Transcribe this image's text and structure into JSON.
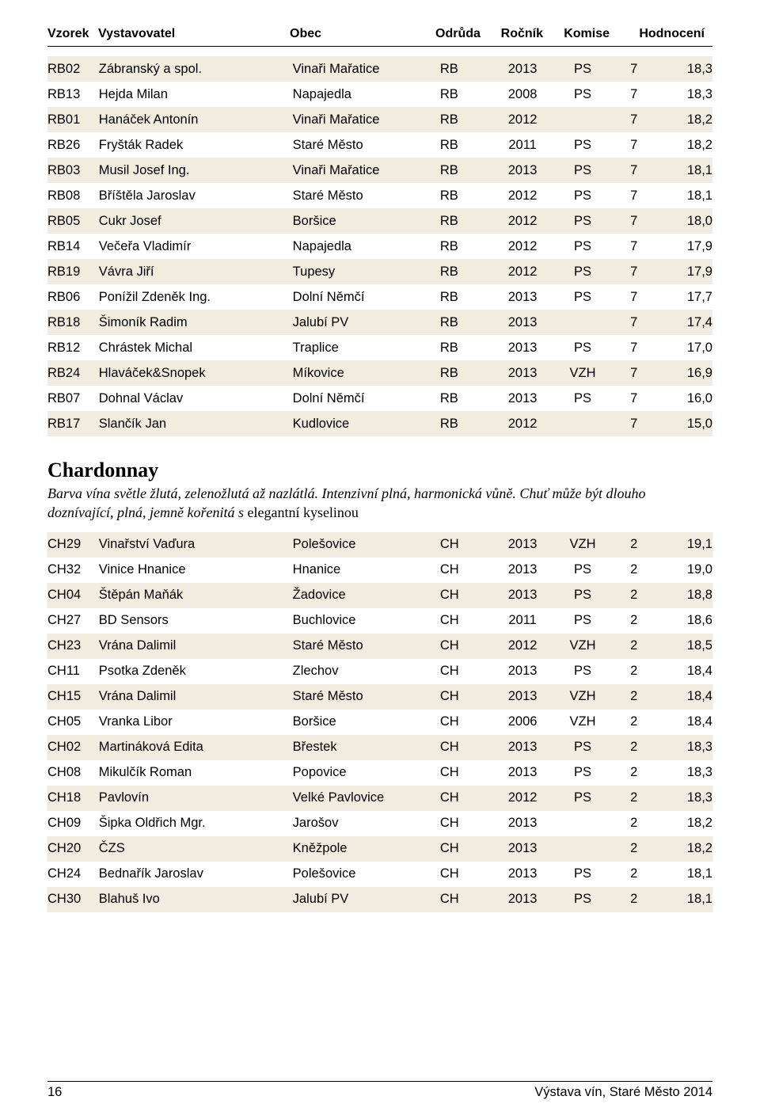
{
  "header": {
    "cols": {
      "vzorek": "Vzorek",
      "vystavovatel": "Vystavovatel",
      "obec": "Obec",
      "odruda": "Odrůda",
      "rocnik": "Ročník",
      "komise": "Komise",
      "hodnoceni": "Hodnocení"
    }
  },
  "rb_rows": [
    {
      "vz": "RB02",
      "vy": "Zábranský a spol.",
      "ob": "Vinaři Mařatice",
      "od": "RB",
      "ro": "2013",
      "ko": "PS",
      "kv": "7",
      "ho": "18,3"
    },
    {
      "vz": "RB13",
      "vy": "Hejda Milan",
      "ob": "Napajedla",
      "od": "RB",
      "ro": "2008",
      "ko": "PS",
      "kv": "7",
      "ho": "18,3"
    },
    {
      "vz": "RB01",
      "vy": "Hanáček Antonín",
      "ob": "Vinaři Mařatice",
      "od": "RB",
      "ro": "2012",
      "ko": "",
      "kv": "7",
      "ho": "18,2"
    },
    {
      "vz": "RB26",
      "vy": "Fryšták Radek",
      "ob": "Staré Město",
      "od": "RB",
      "ro": "2011",
      "ko": "PS",
      "kv": "7",
      "ho": "18,2"
    },
    {
      "vz": "RB03",
      "vy": "Musil Josef Ing.",
      "ob": "Vinaři Mařatice",
      "od": "RB",
      "ro": "2013",
      "ko": "PS",
      "kv": "7",
      "ho": "18,1"
    },
    {
      "vz": "RB08",
      "vy": "Bříštěla Jaroslav",
      "ob": "Staré Město",
      "od": "RB",
      "ro": "2012",
      "ko": "PS",
      "kv": "7",
      "ho": "18,1"
    },
    {
      "vz": "RB05",
      "vy": "Cukr Josef",
      "ob": "Boršice",
      "od": "RB",
      "ro": "2012",
      "ko": "PS",
      "kv": "7",
      "ho": "18,0"
    },
    {
      "vz": "RB14",
      "vy": "Večeřa Vladimír",
      "ob": "Napajedla",
      "od": "RB",
      "ro": "2012",
      "ko": "PS",
      "kv": "7",
      "ho": "17,9"
    },
    {
      "vz": "RB19",
      "vy": "Vávra Jiří",
      "ob": "Tupesy",
      "od": "RB",
      "ro": "2012",
      "ko": "PS",
      "kv": "7",
      "ho": "17,9"
    },
    {
      "vz": "RB06",
      "vy": "Ponížil Zdeněk Ing.",
      "ob": "Dolní Němčí",
      "od": "RB",
      "ro": "2013",
      "ko": "PS",
      "kv": "7",
      "ho": "17,7"
    },
    {
      "vz": "RB18",
      "vy": "Šimoník Radim",
      "ob": "Jalubí PV",
      "od": "RB",
      "ro": "2013",
      "ko": "",
      "kv": "7",
      "ho": "17,4"
    },
    {
      "vz": "RB12",
      "vy": "Chrástek Michal",
      "ob": "Traplice",
      "od": "RB",
      "ro": "2013",
      "ko": "PS",
      "kv": "7",
      "ho": "17,0"
    },
    {
      "vz": "RB24",
      "vy": "Hlaváček&Snopek",
      "ob": "Míkovice",
      "od": "RB",
      "ro": "2013",
      "ko": "VZH",
      "kv": "7",
      "ho": "16,9"
    },
    {
      "vz": "RB07",
      "vy": "Dohnal Václav",
      "ob": "Dolní Němčí",
      "od": "RB",
      "ro": "2013",
      "ko": "PS",
      "kv": "7",
      "ho": "16,0"
    },
    {
      "vz": "RB17",
      "vy": "Slančík Jan",
      "ob": "Kudlovice",
      "od": "RB",
      "ro": "2012",
      "ko": "",
      "kv": "7",
      "ho": "15,0"
    }
  ],
  "section": {
    "title": "Chardonnay",
    "desc_italic": "Barva vína světle žlutá, zelenožlutá až nazlátlá. Intenzivní plná, harmonická vůně. Chuť může být dlouho doznívající, plná, jemně kořenitá s ",
    "desc_plain": "elegantní kyselinou"
  },
  "ch_rows": [
    {
      "vz": "CH29",
      "vy": "Vinařství Vaďura",
      "ob": "Polešovice",
      "od": "CH",
      "ro": "2013",
      "ko": "VZH",
      "kv": "2",
      "ho": "19,1"
    },
    {
      "vz": "CH32",
      "vy": "Vinice Hnanice",
      "ob": "Hnanice",
      "od": "CH",
      "ro": "2013",
      "ko": "PS",
      "kv": "2",
      "ho": "19,0"
    },
    {
      "vz": "CH04",
      "vy": "Štěpán Maňák",
      "ob": "Žadovice",
      "od": "CH",
      "ro": "2013",
      "ko": "PS",
      "kv": "2",
      "ho": "18,8"
    },
    {
      "vz": "CH27",
      "vy": "BD Sensors",
      "ob": "Buchlovice",
      "od": "CH",
      "ro": "2011",
      "ko": "PS",
      "kv": "2",
      "ho": "18,6"
    },
    {
      "vz": "CH23",
      "vy": "Vrána Dalimil",
      "ob": "Staré Město",
      "od": "CH",
      "ro": "2012",
      "ko": "VZH",
      "kv": "2",
      "ho": "18,5"
    },
    {
      "vz": "CH11",
      "vy": "Psotka Zdeněk",
      "ob": "Zlechov",
      "od": "CH",
      "ro": "2013",
      "ko": "PS",
      "kv": "2",
      "ho": "18,4"
    },
    {
      "vz": "CH15",
      "vy": "Vrána Dalimil",
      "ob": "Staré Město",
      "od": "CH",
      "ro": "2013",
      "ko": "VZH",
      "kv": "2",
      "ho": "18,4"
    },
    {
      "vz": "CH05",
      "vy": "Vranka Libor",
      "ob": "Boršice",
      "od": "CH",
      "ro": "2006",
      "ko": "VZH",
      "kv": "2",
      "ho": "18,4"
    },
    {
      "vz": "CH02",
      "vy": "Martináková Edita",
      "ob": "Břestek",
      "od": "CH",
      "ro": "2013",
      "ko": "PS",
      "kv": "2",
      "ho": "18,3"
    },
    {
      "vz": "CH08",
      "vy": "Mikulčík Roman",
      "ob": "Popovice",
      "od": "CH",
      "ro": "2013",
      "ko": "PS",
      "kv": "2",
      "ho": "18,3"
    },
    {
      "vz": "CH18",
      "vy": "Pavlovín",
      "ob": "Velké Pavlovice",
      "od": "CH",
      "ro": "2012",
      "ko": "PS",
      "kv": "2",
      "ho": "18,3"
    },
    {
      "vz": "CH09",
      "vy": "Šipka Oldřich Mgr.",
      "ob": "Jarošov",
      "od": "CH",
      "ro": "2013",
      "ko": "",
      "kv": "2",
      "ho": "18,2"
    },
    {
      "vz": "CH20",
      "vy": "ČZS",
      "ob": "Kněžpole",
      "od": "CH",
      "ro": "2013",
      "ko": "",
      "kv": "2",
      "ho": "18,2"
    },
    {
      "vz": "CH24",
      "vy": "Bednařík Jaroslav",
      "ob": "Polešovice",
      "od": "CH",
      "ro": "2013",
      "ko": "PS",
      "kv": "2",
      "ho": "18,1"
    },
    {
      "vz": "CH30",
      "vy": "Blahuš Ivo",
      "ob": "Jalubí PV",
      "od": "CH",
      "ro": "2013",
      "ko": "PS",
      "kv": "2",
      "ho": "18,1"
    }
  ],
  "footer": {
    "page": "16",
    "event": "Výstava vín, Staré Město 2014"
  }
}
